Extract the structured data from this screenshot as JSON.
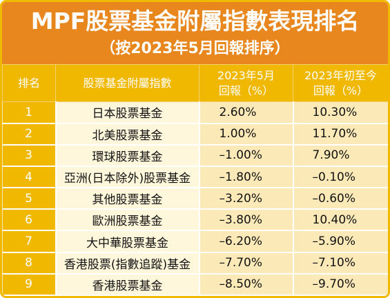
{
  "chart_data": {
    "type": "table",
    "title": "MPF股票基金附屬指數表現排名",
    "subtitle": "（按2023年5月回報排序）",
    "columns": [
      {
        "line1": "排名",
        "line2": ""
      },
      {
        "line1": "股票基金附屬指數",
        "line2": ""
      },
      {
        "line1": "2023年5月",
        "line2": "回報（%）"
      },
      {
        "line1": "2023年初至今",
        "line2": "回報（%）"
      }
    ],
    "rows": [
      {
        "rank": "1",
        "name": "日本股票基金",
        "may": "2.60%",
        "ytd": "10.30%"
      },
      {
        "rank": "2",
        "name": "北美股票基金",
        "may": "1.00%",
        "ytd": "11.70%"
      },
      {
        "rank": "3",
        "name": "環球股票基金",
        "may": "–1.00%",
        "ytd": "7.90%"
      },
      {
        "rank": "4",
        "name": "亞洲(日本除外)股票基金",
        "may": "–1.80%",
        "ytd": "–0.10%"
      },
      {
        "rank": "5",
        "name": "其他股票基金",
        "may": "–3.20%",
        "ytd": "–0.60%"
      },
      {
        "rank": "6",
        "name": "歐洲股票基金",
        "may": "–3.80%",
        "ytd": "10.40%"
      },
      {
        "rank": "7",
        "name": "大中華股票基金",
        "may": "–6.20%",
        "ytd": "–5.90%"
      },
      {
        "rank": "8",
        "name": "香港股票(指數追蹤)基金",
        "may": "–7.70%",
        "ytd": "–7.10%"
      },
      {
        "rank": "9",
        "name": "香港股票基金",
        "may": "–8.50%",
        "ytd": "–9.70%"
      }
    ]
  },
  "colors": {
    "header_bg": "#e8871e",
    "column_header_bg": "#f0b800",
    "name_cell_bg": "#fff7dc",
    "value_cell_bg": "#fbe9b8"
  }
}
